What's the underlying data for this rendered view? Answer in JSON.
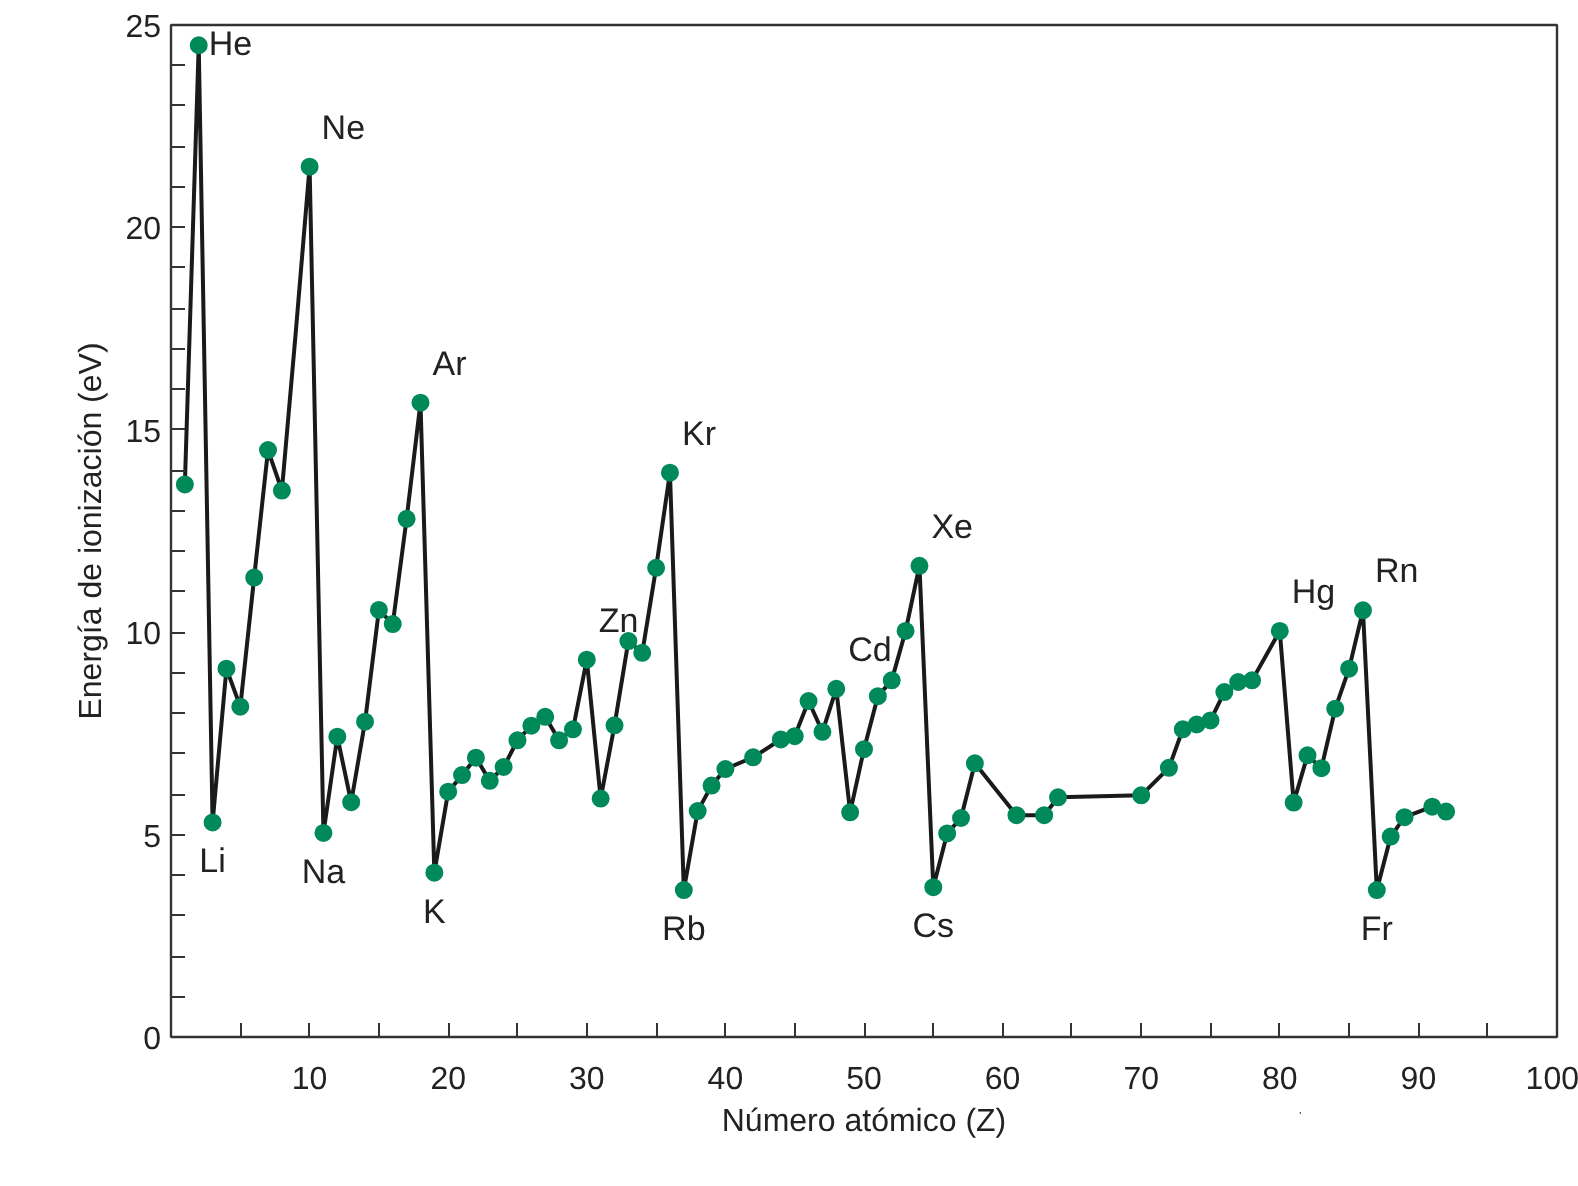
{
  "chart_data": {
    "type": "line",
    "xlabel": "Número atómico (Z)",
    "ylabel": "Energía de ionización (eV)",
    "series": [
      {
        "color": "#1a1a1a",
        "marker": "none",
        "x": [
          1,
          2,
          3,
          4,
          5,
          6,
          7,
          8,
          9,
          10,
          11,
          12,
          13,
          14,
          15,
          16,
          17,
          18,
          19,
          20,
          21,
          22,
          23,
          24,
          25,
          26,
          27,
          28,
          29,
          30,
          31,
          32,
          33,
          34,
          35,
          36,
          37,
          38,
          39,
          40,
          42,
          44,
          45,
          46,
          47,
          48,
          49,
          50,
          51,
          52,
          53,
          54,
          55,
          56,
          57,
          58,
          61,
          63,
          64,
          70,
          72,
          73,
          74,
          75,
          76,
          77,
          78,
          80,
          81,
          82,
          83,
          84,
          85,
          86,
          87,
          88,
          89,
          91,
          92
        ],
        "values": [
          13.65,
          24.5,
          5.3,
          9.1,
          8.16,
          11.35,
          14.5,
          13.5,
          17.4,
          21.5,
          5.04,
          7.42,
          5.8,
          7.79,
          10.55,
          10.2,
          12.8,
          15.67,
          4.06,
          6.06,
          6.47,
          6.9,
          6.33,
          6.67,
          7.33,
          7.69,
          7.91,
          7.33,
          7.6,
          9.32,
          5.89,
          7.7,
          9.78,
          9.49,
          11.59,
          13.94,
          3.63,
          5.58,
          6.21,
          6.62,
          6.91,
          7.35,
          7.43,
          8.3,
          7.54,
          8.6,
          5.55,
          7.11,
          8.42,
          8.81,
          10.03,
          11.64,
          3.7,
          5.03,
          5.41,
          6.76,
          5.48,
          5.48,
          5.92,
          5.97,
          6.65,
          7.6,
          7.72,
          7.82,
          8.52,
          8.77,
          8.81,
          10.03,
          5.79,
          6.96,
          6.64,
          8.11,
          9.1,
          10.54,
          3.63,
          4.95,
          5.43,
          5.69,
          5.57
        ]
      },
      {
        "type": "scatter",
        "color": "#008a5a",
        "marker": "circle",
        "x": [
          1,
          2,
          3,
          4,
          5,
          6,
          7,
          8,
          10,
          11,
          12,
          13,
          14,
          15,
          16,
          17,
          18,
          19,
          20,
          21,
          22,
          23,
          24,
          25,
          26,
          27,
          28,
          29,
          30,
          31,
          32,
          33,
          34,
          35,
          36,
          37,
          38,
          39,
          40,
          42,
          44,
          45,
          46,
          47,
          48,
          49,
          50,
          51,
          52,
          53,
          54,
          55,
          56,
          57,
          58,
          61,
          63,
          64,
          70,
          72,
          73,
          74,
          75,
          76,
          77,
          78,
          80,
          81,
          82,
          83,
          84,
          85,
          86,
          87,
          88,
          89,
          91,
          92
        ],
        "values": [
          13.65,
          24.5,
          5.3,
          9.1,
          8.16,
          11.35,
          14.5,
          13.5,
          21.5,
          5.04,
          7.42,
          5.8,
          7.79,
          10.55,
          10.2,
          12.8,
          15.67,
          4.06,
          6.06,
          6.47,
          6.9,
          6.33,
          6.67,
          7.33,
          7.69,
          7.91,
          7.33,
          7.6,
          9.32,
          5.89,
          7.7,
          9.78,
          9.49,
          11.59,
          13.94,
          3.63,
          5.58,
          6.21,
          6.62,
          6.91,
          7.35,
          7.43,
          8.3,
          7.54,
          8.6,
          5.55,
          7.11,
          8.42,
          8.81,
          10.03,
          11.64,
          3.7,
          5.03,
          5.41,
          6.76,
          5.48,
          5.48,
          5.92,
          5.97,
          6.65,
          7.6,
          7.72,
          7.82,
          8.52,
          8.77,
          8.81,
          10.03,
          5.79,
          6.96,
          6.64,
          8.11,
          9.1,
          10.54,
          3.63,
          4.95,
          5.43,
          5.69,
          5.57
        ]
      }
    ],
    "annotations": [
      {
        "text": "He",
        "x": 2,
        "y": 24.5
      },
      {
        "text": "Li",
        "x": 3,
        "y": 5.3
      },
      {
        "text": "Ne",
        "x": 10,
        "y": 21.5
      },
      {
        "text": "Na",
        "x": 11,
        "y": 5.04
      },
      {
        "text": "Ar",
        "x": 18,
        "y": 15.67
      },
      {
        "text": "K",
        "x": 19,
        "y": 4.06
      },
      {
        "text": "Zn",
        "x": 30,
        "y": 9.32
      },
      {
        "text": "Kr",
        "x": 36,
        "y": 13.94
      },
      {
        "text": "Rb",
        "x": 37,
        "y": 3.63
      },
      {
        "text": "Cd",
        "x": 48,
        "y": 8.6
      },
      {
        "text": "Xe",
        "x": 54,
        "y": 11.64
      },
      {
        "text": "Cs",
        "x": 55,
        "y": 3.7
      },
      {
        "text": "Hg",
        "x": 80,
        "y": 10.03
      },
      {
        "text": "Rn",
        "x": 86,
        "y": 10.54
      },
      {
        "text": "Fr",
        "x": 87,
        "y": 3.63
      }
    ],
    "xlim": [
      0,
      100
    ],
    "ylim": [
      0,
      25
    ],
    "xticks": [
      {
        "value": 5,
        "label": null
      },
      10,
      {
        "value": 15,
        "label": null
      },
      20,
      {
        "value": 25,
        "label": null
      },
      30,
      {
        "value": 35,
        "label": null
      },
      40,
      {
        "value": 45,
        "label": null
      },
      50,
      {
        "value": 55,
        "label": null
      },
      60,
      {
        "value": 65,
        "label": null
      },
      70,
      {
        "value": 75,
        "label": null
      },
      80,
      {
        "value": 85,
        "label": null
      },
      90,
      {
        "value": 95,
        "label": null
      },
      100
    ],
    "yticks": [
      0,
      {
        "value": 1,
        "label": null
      },
      {
        "value": 2,
        "label": null
      },
      {
        "value": 3,
        "label": null
      },
      {
        "value": 4,
        "label": null
      },
      5,
      {
        "value": 6,
        "label": null
      },
      {
        "value": 7,
        "label": null
      },
      {
        "value": 8,
        "label": null
      },
      {
        "value": 9,
        "label": null
      },
      10,
      {
        "value": 11,
        "label": null
      },
      {
        "value": 12,
        "label": null
      },
      {
        "value": 13,
        "label": null
      },
      {
        "value": 14,
        "label": null
      },
      15,
      {
        "value": 16,
        "label": null
      },
      {
        "value": 17,
        "label": null
      },
      {
        "value": 18,
        "label": null
      },
      {
        "value": 19,
        "label": null
      },
      20,
      {
        "value": 21,
        "label": null
      },
      {
        "value": 22,
        "label": null
      },
      {
        "value": 23,
        "label": null
      },
      {
        "value": 24,
        "label": null
      },
      25
    ],
    "grid": false
  }
}
